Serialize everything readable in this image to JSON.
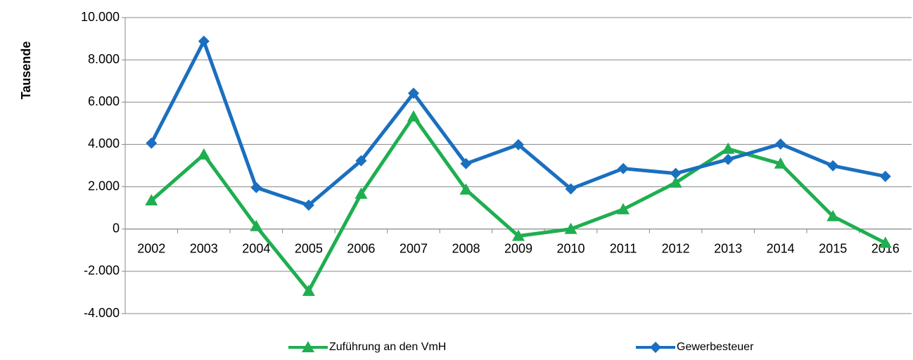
{
  "chart_data": {
    "type": "line",
    "ylabel": "Tausende",
    "categories": [
      "2002",
      "2003",
      "2004",
      "2005",
      "2006",
      "2007",
      "2008",
      "2009",
      "2010",
      "2011",
      "2012",
      "2013",
      "2014",
      "2015",
      "2016"
    ],
    "series": [
      {
        "name": "Zuführung an den VmH",
        "color": "#1fae50",
        "marker": "triangle",
        "values": [
          1350,
          3520,
          130,
          -2930,
          1660,
          5320,
          1860,
          -330,
          0,
          930,
          2190,
          3790,
          3090,
          600,
          -660
        ]
      },
      {
        "name": "Gewerbesteuer",
        "color": "#1a6fbf",
        "marker": "diamond",
        "values": [
          4060,
          8880,
          1960,
          1130,
          3230,
          6420,
          3090,
          3990,
          1900,
          2860,
          2630,
          3290,
          4020,
          2990,
          2490
        ]
      }
    ],
    "ylim": [
      -4000,
      10000
    ],
    "yticks": [
      {
        "value": -4000,
        "label": "-4.000"
      },
      {
        "value": -2000,
        "label": "-2.000"
      },
      0,
      {
        "value": 2000,
        "label": "2.000"
      },
      {
        "value": 4000,
        "label": "4.000"
      },
      {
        "value": 6000,
        "label": "6.000"
      },
      {
        "value": 8000,
        "label": "8.000"
      },
      {
        "value": 10000,
        "label": "10.000"
      }
    ],
    "grid": true,
    "legend": "bottom"
  }
}
